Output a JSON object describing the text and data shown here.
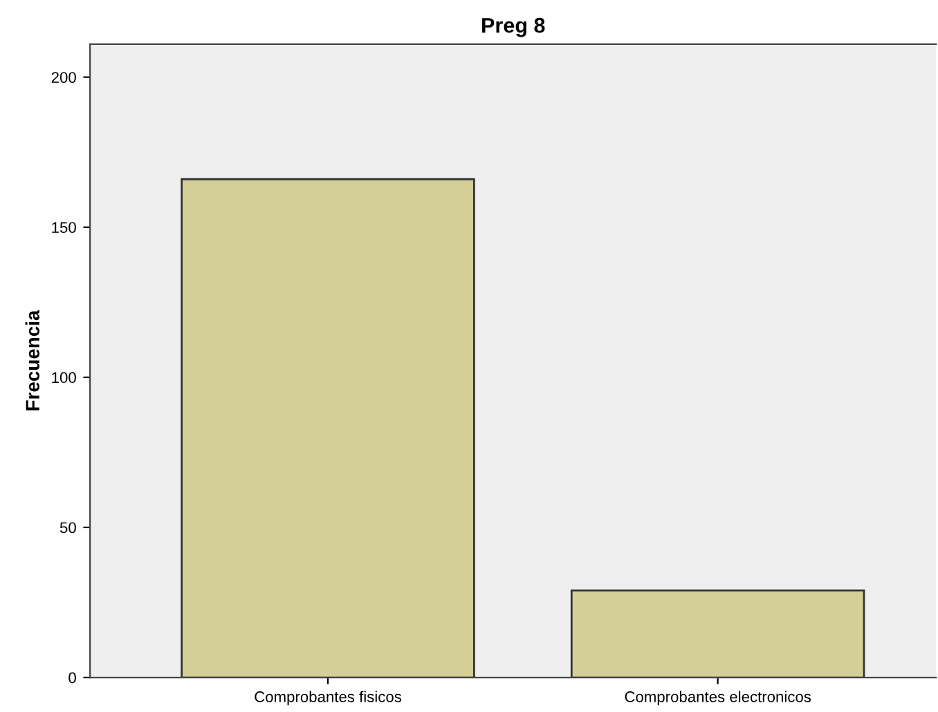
{
  "chart_data": {
    "type": "bar",
    "title": "Preg 8",
    "ylabel": "Frecuencia",
    "categories": [
      "Comprobantes fisicos",
      "Comprobantes electronicos"
    ],
    "values": [
      166,
      29
    ],
    "color": "#d3cf97",
    "ylim": [
      0,
      211
    ],
    "yticks": [
      0,
      50,
      100,
      150,
      200
    ],
    "grid": false,
    "legend": false
  }
}
